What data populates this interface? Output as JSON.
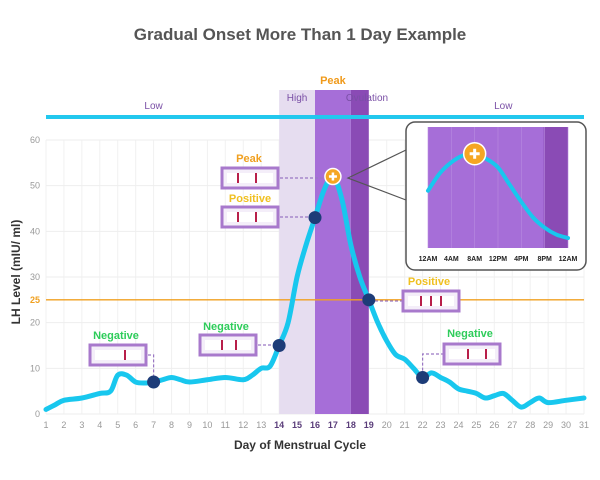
{
  "chart_data": {
    "type": "line",
    "title": "Gradual Onset More Than 1 Day Example",
    "xlabel": "Day of Menstrual Cycle",
    "ylabel": "LH Level (mIU/ ml)",
    "xlim": [
      1,
      31
    ],
    "ylim": [
      0,
      60
    ],
    "x_ticks": [
      1,
      2,
      3,
      4,
      5,
      6,
      7,
      8,
      9,
      10,
      11,
      12,
      13,
      14,
      15,
      16,
      17,
      18,
      19,
      20,
      21,
      22,
      23,
      24,
      25,
      26,
      27,
      28,
      29,
      30,
      31
    ],
    "highlighted_x_ticks": [
      14,
      15,
      16,
      17,
      18,
      19
    ],
    "y_ticks": [
      0,
      10,
      20,
      25,
      30,
      40,
      50,
      60
    ],
    "grid": true,
    "series": [
      {
        "color": "#18c7ee",
        "x": [
          1,
          1.5,
          2,
          3,
          4,
          4.6,
          5,
          5.5,
          6,
          6.6,
          7,
          7.5,
          8,
          8.5,
          9,
          10,
          11,
          12,
          12.5,
          13,
          13.5,
          14,
          14.5,
          15,
          15.5,
          16,
          16.5,
          17,
          17.5,
          18,
          18.5,
          19,
          19.5,
          20,
          20.5,
          21,
          21.5,
          22,
          22.5,
          23,
          23.5,
          24,
          24.5,
          25,
          25.5,
          26,
          26.5,
          27,
          27.5,
          28,
          28.5,
          29,
          30,
          31
        ],
        "y": [
          1,
          2,
          3,
          3.5,
          4.5,
          5,
          8.5,
          8.5,
          7,
          6.8,
          7,
          7.5,
          8,
          7.5,
          7,
          7.5,
          8,
          7.5,
          8.5,
          10,
          10.5,
          15,
          20,
          30,
          37,
          43,
          49,
          52,
          47,
          37,
          30,
          25,
          20,
          16,
          13,
          12,
          10,
          8,
          9,
          8,
          7,
          5.5,
          5,
          4.5,
          3.5,
          4,
          4.5,
          3,
          1.5,
          2.5,
          3.5,
          2.5,
          3,
          3.5
        ]
      }
    ],
    "reference_lines": [
      {
        "y": 25,
        "label": "25",
        "color": "#f0a020"
      }
    ],
    "bands": [
      {
        "label": "High",
        "x_start": 14,
        "x_end": 16,
        "color": "#e6ddf0"
      },
      {
        "label": "Peak",
        "x_start": 16,
        "x_end": 18,
        "color": "#a66ed8"
      },
      {
        "label": "Ovulation",
        "x_start": 18,
        "x_end": 19,
        "color": "#8a4bb5"
      }
    ],
    "phase_labels": [
      {
        "text": "Low",
        "x": 7
      },
      {
        "text": "High",
        "x": 15
      },
      {
        "text": "Peak",
        "x": 17
      },
      {
        "text": "Ovulation",
        "x": 18.9
      },
      {
        "text": "Low",
        "x": 26.5
      }
    ],
    "markers": [
      {
        "x": 7,
        "y": 7,
        "type": "dot"
      },
      {
        "x": 14,
        "y": 15,
        "type": "dot"
      },
      {
        "x": 16,
        "y": 43,
        "type": "dot"
      },
      {
        "x": 17,
        "y": 52,
        "type": "plus"
      },
      {
        "x": 19,
        "y": 25,
        "type": "dot"
      },
      {
        "x": 22,
        "y": 8,
        "type": "dot"
      }
    ],
    "annotations": [
      {
        "text": "Negative",
        "color": "#2ecc5a",
        "x": 7,
        "y": 7
      },
      {
        "text": "Negative",
        "color": "#2ecc5a",
        "x": 14,
        "y": 15
      },
      {
        "text": "Positive",
        "color": "#f0c020",
        "x": 16,
        "y": 43
      },
      {
        "text": "Peak",
        "color": "#f0a020",
        "x": 17,
        "y": 52
      },
      {
        "text": "Positive",
        "color": "#f0c020",
        "x": 19,
        "y": 25
      },
      {
        "text": "Negative",
        "color": "#2ecc5a",
        "x": 22,
        "y": 8
      }
    ],
    "inset": {
      "x_ticks": [
        "12AM",
        "4AM",
        "8AM",
        "12PM",
        "4PM",
        "8PM",
        "12AM"
      ],
      "series": {
        "x": [
          0,
          0.5,
          1,
          1.5,
          2,
          2.5,
          3,
          3.5,
          4,
          4.5,
          5,
          5.5,
          6
        ],
        "y": [
          0.55,
          0.75,
          0.88,
          0.96,
          0.98,
          0.92,
          0.82,
          0.62,
          0.42,
          0.24,
          0.12,
          0.04,
          0.0
        ]
      },
      "ovulation_band_start": 5
    }
  }
}
